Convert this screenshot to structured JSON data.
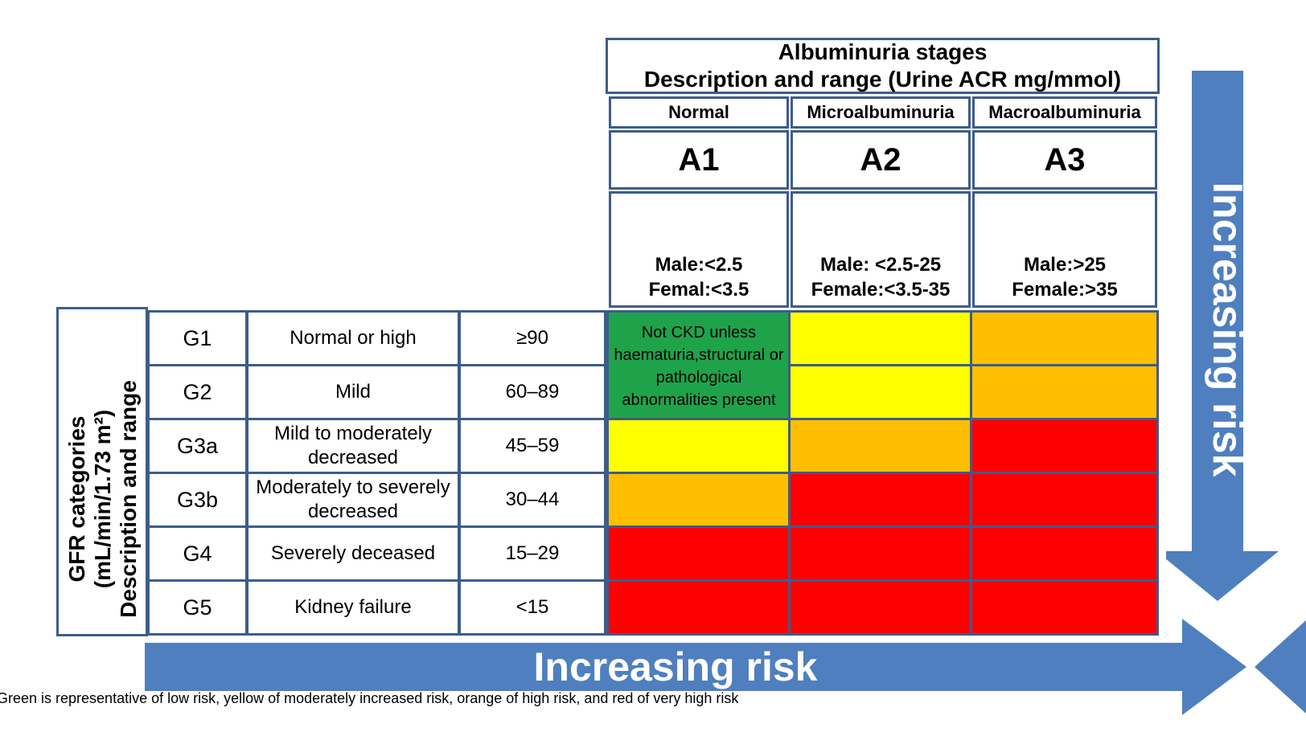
{
  "header": {
    "title_line1": "Albuminuria stages",
    "title_line2": "Description and range (Urine ACR mg/mmol)"
  },
  "columns": [
    {
      "name": "Normal",
      "stage": "A1",
      "range_line1": "Male:<2.5",
      "range_line2": "Femal:<3.5"
    },
    {
      "name": "Microalbuminuria",
      "stage": "A2",
      "range_line1": "Male: <2.5-25",
      "range_line2": "Female:<3.5-35"
    },
    {
      "name": "Macroalbuminuria",
      "stage": "A3",
      "range_line1": "Male:>25",
      "range_line2": "Female:>35"
    }
  ],
  "side_label": {
    "line1": "GFR categories",
    "line2": "(mL/min/1.73 m²)",
    "line3": "Description and range"
  },
  "rows": [
    {
      "category": "G1",
      "description": "Normal or high",
      "range": "≥90"
    },
    {
      "category": "G2",
      "description": "Mild",
      "range": "60–89"
    },
    {
      "category": "G3a",
      "description": "Mild to moderately decreased",
      "range": "45–59"
    },
    {
      "category": "G3b",
      "description": "Moderately to severely decreased",
      "range": "30–44"
    },
    {
      "category": "G4",
      "description": "Severely deceased",
      "range": "15–29"
    },
    {
      "category": "G5",
      "description": "Kidney failure",
      "range": "<15"
    }
  ],
  "green_cell_text": "Not CKD unless haematuria,structural or pathological abnormalities present",
  "colors": {
    "green": "#1fa34a",
    "yellow": "#ffff00",
    "orange": "#ffbf00",
    "red": "#ff0000",
    "arrow_blue": "#4f7fbf",
    "border_blue": "#3d5c8c"
  },
  "risk_grid": [
    [
      "green",
      "yellow",
      "orange"
    ],
    [
      "green",
      "yellow",
      "orange"
    ],
    [
      "yellow",
      "orange",
      "red"
    ],
    [
      "orange",
      "red",
      "red"
    ],
    [
      "red",
      "red",
      "red"
    ],
    [
      "red",
      "red",
      "red"
    ]
  ],
  "arrows": {
    "horizontal_label": "Increasing risk",
    "vertical_label": "Increasing risk"
  },
  "footnote_line1": "Green is representative of low risk, yellow of moderately increased risk, orange of high risk, and red of very high risk"
}
